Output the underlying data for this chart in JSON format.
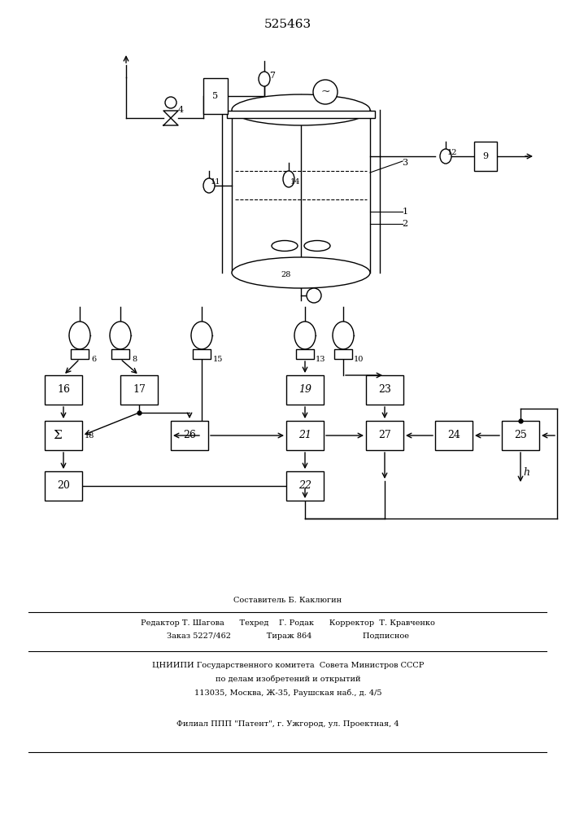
{
  "title": "525463",
  "bg_color": "#ffffff",
  "footer_lines": [
    "Составитель Б. Каклюгин",
    "Редактор Т. Шагова      Техред    Г. Родак      Корректор  Т. Кравченко",
    "Заказ 5227/462              Тираж 864                    Подписное",
    "ЦНИИПИ Государственного комитета  Совета Министров СССР",
    "по делам изобретений и открытий",
    "113035, Москва, Ж-35, Раушская наб., д. 4/5",
    "Филиал ППП \"Патент\", г. Ужгород, ул. Проектная, 4"
  ]
}
